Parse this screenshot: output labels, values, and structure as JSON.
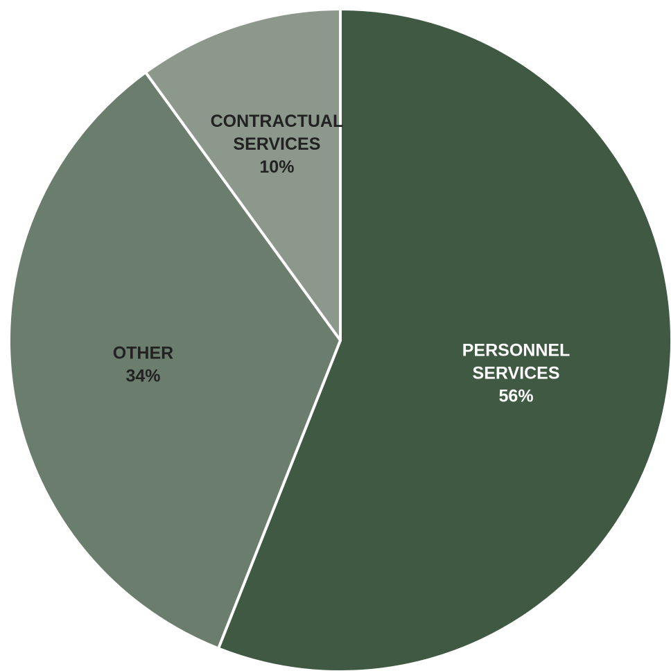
{
  "chart_data": {
    "type": "pie",
    "title": "",
    "start_angle_deg": 0,
    "direction": "clockwise",
    "slices": [
      {
        "label_lines": [
          "PERSONNEL",
          "SERVICES"
        ],
        "pct_label": "56%",
        "value": 56,
        "color": "#405943",
        "text_color": "#ffffff"
      },
      {
        "label_lines": [
          "OTHER"
        ],
        "pct_label": "34%",
        "value": 34,
        "color": "#6b7d6c",
        "text_color": "#222222"
      },
      {
        "label_lines": [
          "CONTRACTUAL",
          "SERVICES"
        ],
        "pct_label": "10%",
        "value": 10,
        "color": "#8c988b",
        "text_color": "#222222"
      }
    ],
    "separator_color": "#ffffff"
  }
}
